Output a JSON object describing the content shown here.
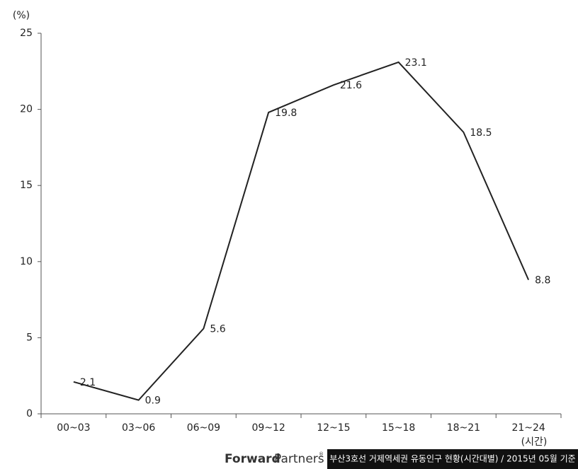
{
  "chart_data": {
    "type": "line",
    "y_unit": "(%)",
    "x_unit": "(시간)",
    "categories": [
      "00~03",
      "03~06",
      "06~09",
      "09~12",
      "12~15",
      "15~18",
      "18~21",
      "21~24"
    ],
    "values": [
      2.1,
      0.9,
      5.6,
      19.8,
      21.6,
      23.1,
      18.5,
      8.8
    ],
    "color": "#222222",
    "ylim": [
      0,
      25
    ],
    "yticks": [
      0,
      5,
      10,
      15,
      20,
      25
    ],
    "grid": false
  },
  "footer": {
    "brand_bold": "Forward",
    "brand_regular": "Partners",
    "caption": "부산3호선 거제역세권 유동인구 현황(시간대별) / 2015년 05월 기준"
  }
}
